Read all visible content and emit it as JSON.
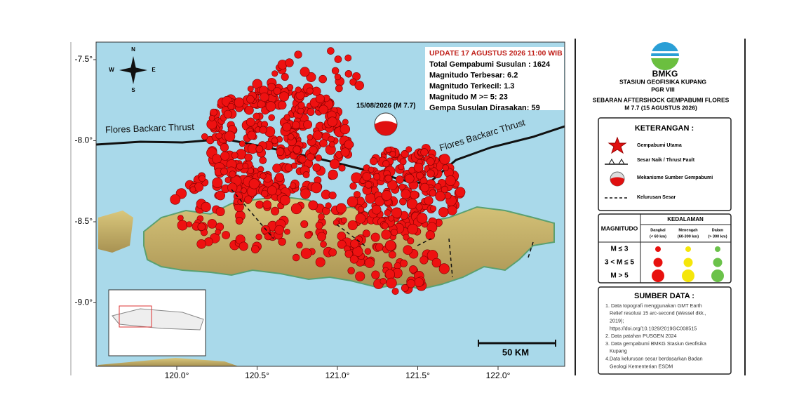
{
  "map": {
    "lat_labels": [
      "-7.5°",
      "-8.0°",
      "-8.5°",
      "-9.0°"
    ],
    "lon_labels": [
      "120.0°",
      "120.5°",
      "121.0°",
      "121.5°",
      "122.0°"
    ],
    "compass": {
      "n": "N",
      "s": "S",
      "w": "W",
      "e": "E"
    },
    "info": {
      "update": "UPDATE 17 AGUSTUS 2026 11:00 WIB",
      "lines": [
        "Total Gempabumi Susulan : 1624",
        "Magnitudo Terbesar: 6.2",
        "Magnitudo Terkecil: 1.3",
        "Magnitudo M >= 5: 23",
        "Gempa Susulan Dirasakan: 59"
      ]
    },
    "mainshock_label": "15/08/2026 (M 7.7)",
    "fault_labels": [
      "Flores Backarc Thrust",
      "Flores Backarc Thrust"
    ],
    "scale": "50 KM"
  },
  "panel": {
    "logo": "BMKG",
    "station": "STASIUN GEOFISIKA KUPANG",
    "region": "PGR VIII",
    "title": "SEBARAN AFTERSHOCK GEMPABUMI FLORES",
    "subtitle": "M 7.7 (15 AGUSTUS 2026)",
    "legend": {
      "title": "KETERANGAN :",
      "items": [
        "Gempabumi Utama",
        "Sesar Naik / Thrust Fault",
        "Mekanisme Sumber Gempabumi",
        "Kelurusan Sesar"
      ]
    },
    "depth_table": {
      "depth_header": "KEDALAMAN",
      "mag_header": "MAGNITUDO",
      "columns": [
        [
          "Dangkal",
          "(< 60 km)"
        ],
        [
          "Menengah",
          "(60-300 km)"
        ],
        [
          "Dalam",
          "(> 300 km)"
        ]
      ],
      "rows": [
        "M ≤ 3",
        "3 < M ≤ 5",
        "M > 5"
      ]
    },
    "sources": {
      "title": "SUMBER DATA :",
      "items": [
        [
          "1. Data topografi menggunakan GMT Earth",
          "Relief resolusi 15 arc-second (Wessel dkk.,",
          "2019);",
          "https://doi.org/10.1029/2019GC008515"
        ],
        [
          "2. Data patahan PUSGEN 2024"
        ],
        [
          "3. Data gempabumi BMKG Stasiun Geofisika",
          "Kupang"
        ],
        [
          "4.Data kelurusan sesar berdasarkan Badan",
          "Geologi Kementerian ESDM"
        ]
      ]
    }
  }
}
